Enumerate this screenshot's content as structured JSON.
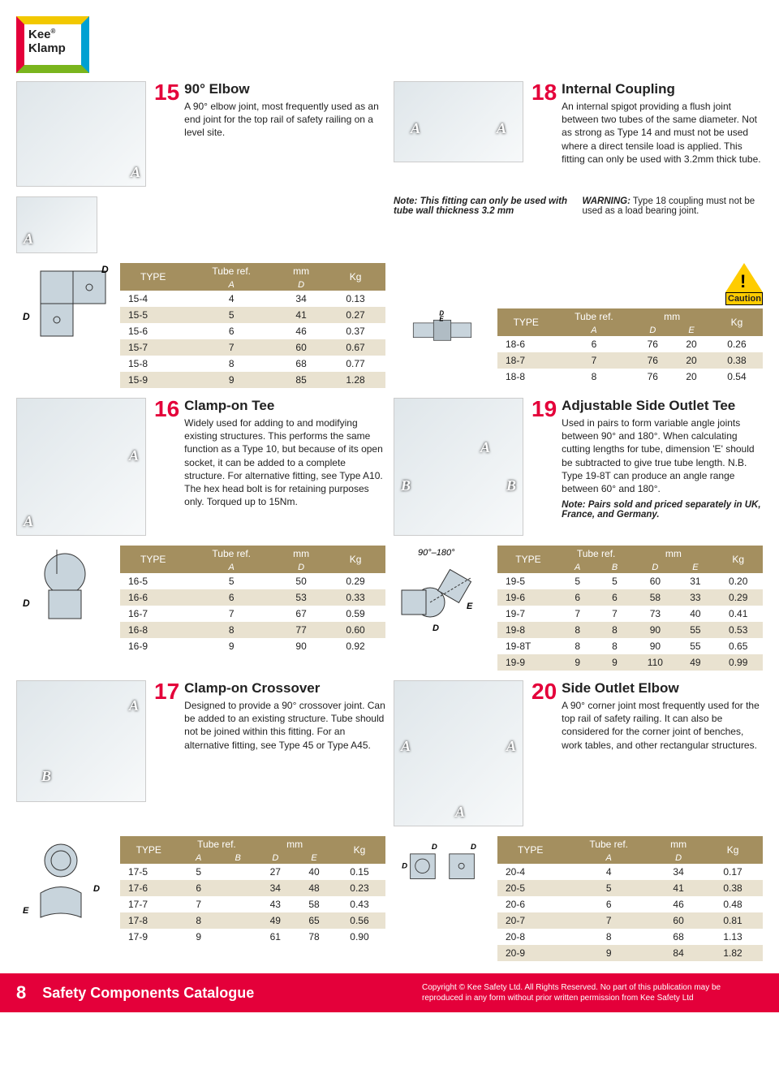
{
  "brand": "Kee Klamp",
  "colors": {
    "accent": "#e4003a",
    "table_header": "#a48f5f",
    "table_alt": "#e9e2d0"
  },
  "products": {
    "p15": {
      "num": "15",
      "title": "90° Elbow",
      "desc": "A 90° elbow joint, most frequently used as an end joint for the top rail of safety railing on a level site."
    },
    "p18": {
      "num": "18",
      "title": "Internal Coupling",
      "desc": "An internal spigot providing a flush joint between two tubes of the same diameter. Not as strong as Type 14 and must not be used where a direct tensile load is applied. This fitting can only be used with 3.2mm thick tube."
    },
    "p16": {
      "num": "16",
      "title": "Clamp-on Tee",
      "desc": "Widely used for adding to and modifying existing structures. This performs the same function as a Type 10, but because of its open socket, it can be added to a complete structure. For alternative fitting, see Type A10. The hex head bolt is for retaining purposes only. Torqued up to 15Nm."
    },
    "p19": {
      "num": "19",
      "title": "Adjustable Side Outlet Tee",
      "desc": "Used in pairs to form variable angle joints between 90° and 180°. When calculating cutting lengths for tube, dimension 'E' should be subtracted to give true tube length. N.B. Type 19-8T can produce an angle range between 60° and 180°.",
      "note": "Note: Pairs sold and priced separately in UK, France, and Germany."
    },
    "p17": {
      "num": "17",
      "title": "Clamp-on Crossover",
      "desc": "Designed to provide a 90° crossover joint. Can be added to an existing structure. Tube should not be joined within this fitting. For an alternative fitting, see Type 45 or Type A45."
    },
    "p20": {
      "num": "20",
      "title": "Side Outlet Elbow",
      "desc": "A 90° corner joint most frequently used for the top rail of safety railing. It can also be considered for the corner joint of benches, work tables, and other rectangular structures."
    }
  },
  "note18": "Note: This fitting can only be used with tube wall thickness 3.2 mm",
  "warn18": {
    "label": "WARNING:",
    "text": "Type 18 coupling must not be used as a load bearing joint."
  },
  "caution": "Caution",
  "table_labels": {
    "type": "TYPE",
    "tuberef": "Tube ref.",
    "mm": "mm",
    "kg": "Kg"
  },
  "tables": {
    "t15": {
      "sub": [
        "A",
        "D"
      ],
      "rows": [
        [
          "15-4",
          "4",
          "34",
          "0.13"
        ],
        [
          "15-5",
          "5",
          "41",
          "0.27"
        ],
        [
          "15-6",
          "6",
          "46",
          "0.37"
        ],
        [
          "15-7",
          "7",
          "60",
          "0.67"
        ],
        [
          "15-8",
          "8",
          "68",
          "0.77"
        ],
        [
          "15-9",
          "9",
          "85",
          "1.28"
        ]
      ]
    },
    "t18": {
      "sub": [
        "A",
        "D",
        "E"
      ],
      "rows": [
        [
          "18-6",
          "6",
          "76",
          "20",
          "0.26"
        ],
        [
          "18-7",
          "7",
          "76",
          "20",
          "0.38"
        ],
        [
          "18-8",
          "8",
          "76",
          "20",
          "0.54"
        ]
      ]
    },
    "t16": {
      "sub": [
        "A",
        "D"
      ],
      "rows": [
        [
          "16-5",
          "5",
          "50",
          "0.29"
        ],
        [
          "16-6",
          "6",
          "53",
          "0.33"
        ],
        [
          "16-7",
          "7",
          "67",
          "0.59"
        ],
        [
          "16-8",
          "8",
          "77",
          "0.60"
        ],
        [
          "16-9",
          "9",
          "90",
          "0.92"
        ]
      ]
    },
    "t19": {
      "sub": [
        "A",
        "B",
        "D",
        "E"
      ],
      "rows": [
        [
          "19-5",
          "5",
          "5",
          "60",
          "31",
          "0.20"
        ],
        [
          "19-6",
          "6",
          "6",
          "58",
          "33",
          "0.29"
        ],
        [
          "19-7",
          "7",
          "7",
          "73",
          "40",
          "0.41"
        ],
        [
          "19-8",
          "8",
          "8",
          "90",
          "55",
          "0.53"
        ],
        [
          "19-8T",
          "8",
          "8",
          "90",
          "55",
          "0.65"
        ],
        [
          "19-9",
          "9",
          "9",
          "110",
          "49",
          "0.99"
        ]
      ]
    },
    "t17": {
      "sub": [
        "A",
        "B",
        "D",
        "E"
      ],
      "rows": [
        [
          "17-5",
          "5",
          "",
          "27",
          "40",
          "0.15"
        ],
        [
          "17-6",
          "6",
          "",
          "34",
          "48",
          "0.23"
        ],
        [
          "17-7",
          "7",
          "",
          "43",
          "58",
          "0.43"
        ],
        [
          "17-8",
          "8",
          "",
          "49",
          "65",
          "0.56"
        ],
        [
          "17-9",
          "9",
          "",
          "61",
          "78",
          "0.90"
        ]
      ]
    },
    "t20": {
      "sub": [
        "A",
        "D"
      ],
      "rows": [
        [
          "20-4",
          "4",
          "34",
          "0.17"
        ],
        [
          "20-5",
          "5",
          "41",
          "0.38"
        ],
        [
          "20-6",
          "6",
          "46",
          "0.48"
        ],
        [
          "20-7",
          "7",
          "60",
          "0.81"
        ],
        [
          "20-8",
          "8",
          "68",
          "1.13"
        ],
        [
          "20-9",
          "9",
          "84",
          "1.82"
        ]
      ]
    }
  },
  "diag19_label": "90°–180°",
  "footer": {
    "page": "8",
    "title": "Safety Components Catalogue",
    "copy": "Copyright © Kee Safety Ltd. All Rights Reserved. No part of this publication may be reproduced in any form without prior written permission from Kee Safety Ltd"
  }
}
